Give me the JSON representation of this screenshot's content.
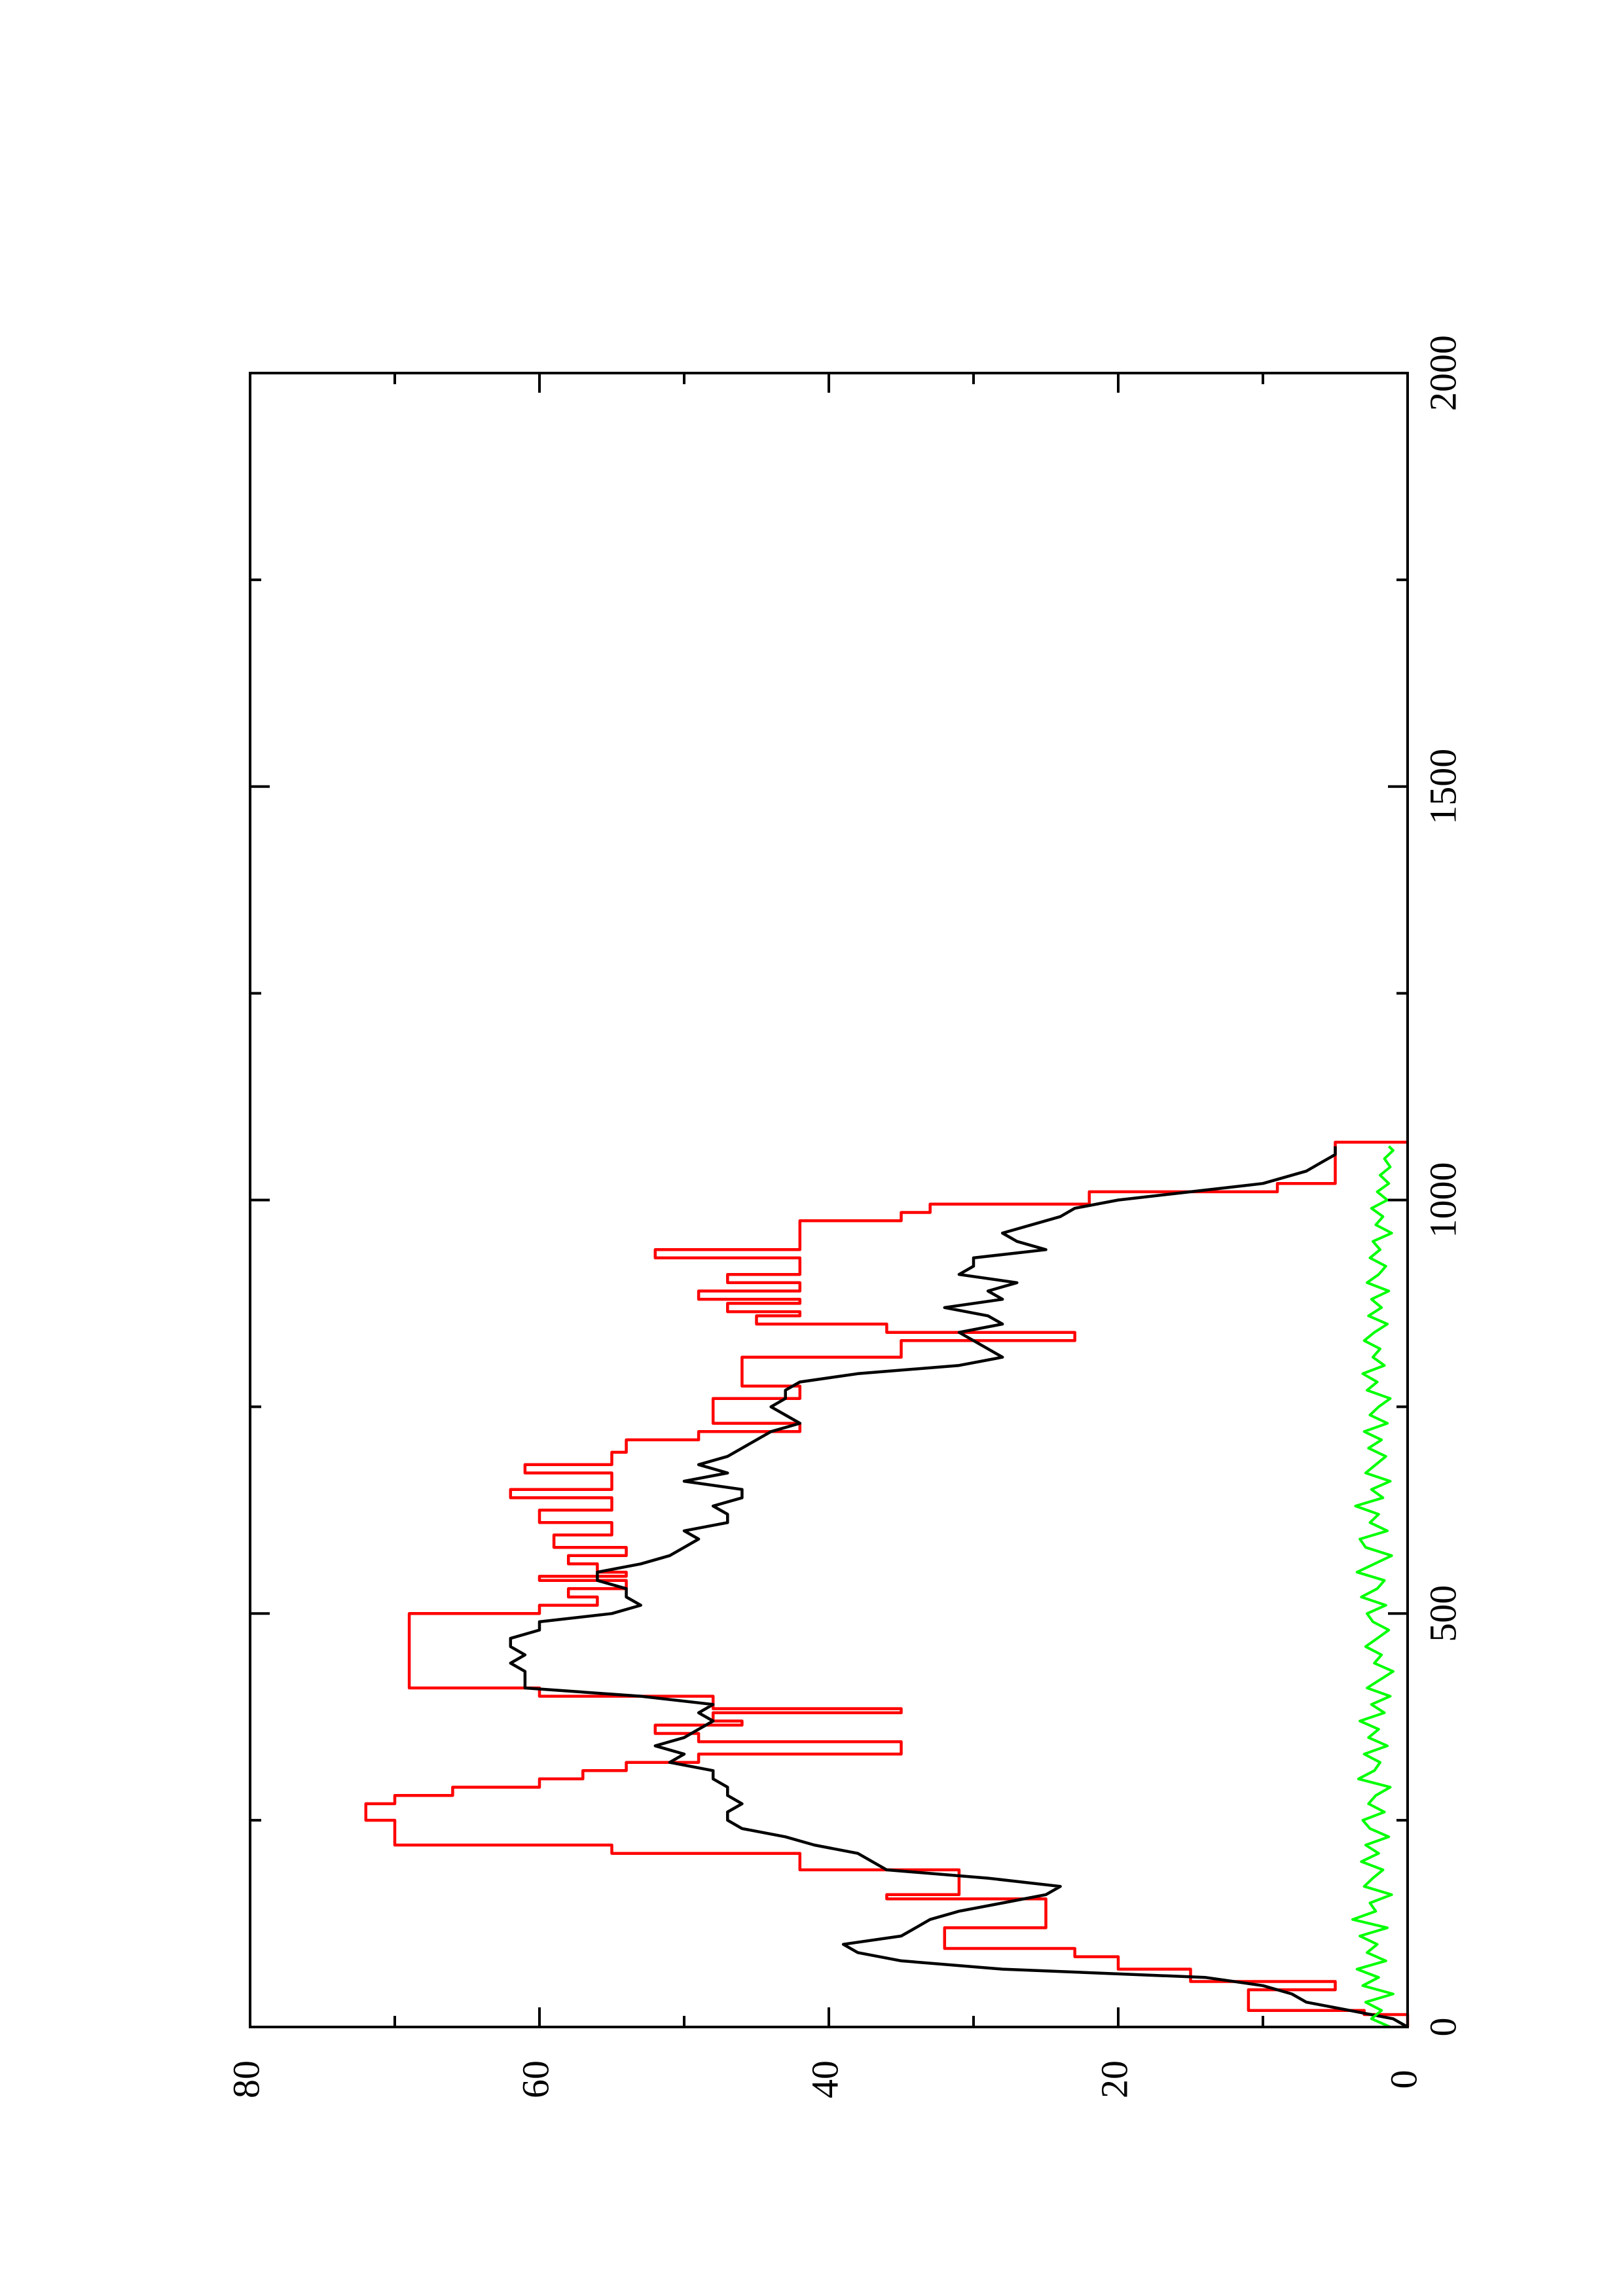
{
  "chart_data": {
    "type": "line",
    "title": "",
    "xlabel": "",
    "ylabel": "",
    "xlim": [
      0,
      2000
    ],
    "ylim": [
      0,
      80
    ],
    "orientation": "rotated-90-ccw",
    "grid": false,
    "legend": "none",
    "x_ticks": [
      {
        "value": 0,
        "label": "0"
      },
      {
        "value": 500,
        "label": "500"
      },
      {
        "value": 1000,
        "label": "1000"
      },
      {
        "value": 1500,
        "label": "1500"
      },
      {
        "value": 2000,
        "label": "2000"
      }
    ],
    "x_minor_ticks": [
      250,
      750,
      1250,
      1750
    ],
    "y_ticks": [
      {
        "value": 0,
        "label": "0"
      },
      {
        "value": 20,
        "label": "20"
      },
      {
        "value": 40,
        "label": "40"
      },
      {
        "value": 60,
        "label": "60"
      },
      {
        "value": 80,
        "label": "80"
      }
    ],
    "y_minor_ticks": [
      10,
      30,
      50,
      70
    ],
    "series": [
      {
        "color": "#ff0000",
        "style": "step",
        "points": [
          [
            0,
            0
          ],
          [
            15,
            3
          ],
          [
            20,
            11
          ],
          [
            35,
            11
          ],
          [
            45,
            5
          ],
          [
            55,
            15
          ],
          [
            70,
            20
          ],
          [
            85,
            23
          ],
          [
            95,
            32
          ],
          [
            110,
            32
          ],
          [
            120,
            25
          ],
          [
            140,
            25
          ],
          [
            155,
            36
          ],
          [
            160,
            31
          ],
          [
            180,
            31
          ],
          [
            190,
            42
          ],
          [
            200,
            42
          ],
          [
            210,
            55
          ],
          [
            220,
            70
          ],
          [
            240,
            70
          ],
          [
            250,
            72
          ],
          [
            265,
            72
          ],
          [
            270,
            70
          ],
          [
            280,
            66
          ],
          [
            290,
            60
          ],
          [
            300,
            57
          ],
          [
            310,
            54
          ],
          [
            320,
            49
          ],
          [
            330,
            35
          ],
          [
            345,
            49
          ],
          [
            355,
            52
          ],
          [
            365,
            46
          ],
          [
            370,
            48
          ],
          [
            380,
            35
          ],
          [
            385,
            48
          ],
          [
            395,
            48
          ],
          [
            400,
            60
          ],
          [
            410,
            69
          ],
          [
            490,
            69
          ],
          [
            500,
            60
          ],
          [
            510,
            56
          ],
          [
            520,
            58
          ],
          [
            530,
            54
          ],
          [
            540,
            60
          ],
          [
            545,
            54
          ],
          [
            550,
            56
          ],
          [
            560,
            58
          ],
          [
            570,
            54
          ],
          [
            580,
            59
          ],
          [
            595,
            55
          ],
          [
            610,
            60
          ],
          [
            625,
            55
          ],
          [
            640,
            62
          ],
          [
            650,
            55
          ],
          [
            665,
            55
          ],
          [
            670,
            61
          ],
          [
            680,
            55
          ],
          [
            695,
            54
          ],
          [
            710,
            49
          ],
          [
            720,
            42
          ],
          [
            730,
            48
          ],
          [
            750,
            48
          ],
          [
            760,
            42
          ],
          [
            775,
            46
          ],
          [
            790,
            46
          ],
          [
            810,
            35
          ],
          [
            830,
            23
          ],
          [
            840,
            36
          ],
          [
            850,
            45
          ],
          [
            860,
            42
          ],
          [
            865,
            47
          ],
          [
            875,
            42
          ],
          [
            880,
            49
          ],
          [
            890,
            42
          ],
          [
            900,
            47
          ],
          [
            910,
            42
          ],
          [
            920,
            42
          ],
          [
            930,
            52
          ],
          [
            940,
            42
          ],
          [
            960,
            42
          ],
          [
            975,
            35
          ],
          [
            985,
            33
          ],
          [
            995,
            22
          ],
          [
            1010,
            9
          ],
          [
            1020,
            5
          ],
          [
            1065,
            5
          ],
          [
            1070,
            0
          ]
        ]
      },
      {
        "color": "#000000",
        "style": "line",
        "points": [
          [
            0,
            0
          ],
          [
            10,
            1
          ],
          [
            20,
            4
          ],
          [
            30,
            7
          ],
          [
            40,
            8
          ],
          [
            50,
            10
          ],
          [
            60,
            14
          ],
          [
            70,
            28
          ],
          [
            80,
            35
          ],
          [
            90,
            38
          ],
          [
            100,
            39
          ],
          [
            110,
            35
          ],
          [
            120,
            34
          ],
          [
            130,
            33
          ],
          [
            140,
            31
          ],
          [
            150,
            28
          ],
          [
            160,
            25
          ],
          [
            170,
            24
          ],
          [
            180,
            29
          ],
          [
            190,
            36
          ],
          [
            200,
            37
          ],
          [
            210,
            38
          ],
          [
            220,
            41
          ],
          [
            230,
            43
          ],
          [
            240,
            46
          ],
          [
            250,
            47
          ],
          [
            260,
            47
          ],
          [
            270,
            46
          ],
          [
            280,
            47
          ],
          [
            290,
            47
          ],
          [
            300,
            48
          ],
          [
            310,
            48
          ],
          [
            320,
            51
          ],
          [
            330,
            50
          ],
          [
            340,
            52
          ],
          [
            350,
            50
          ],
          [
            360,
            49
          ],
          [
            370,
            48
          ],
          [
            380,
            49
          ],
          [
            390,
            48
          ],
          [
            400,
            53
          ],
          [
            410,
            61
          ],
          [
            420,
            61
          ],
          [
            430,
            61
          ],
          [
            440,
            62
          ],
          [
            450,
            61
          ],
          [
            460,
            62
          ],
          [
            470,
            62
          ],
          [
            480,
            60
          ],
          [
            490,
            60
          ],
          [
            500,
            55
          ],
          [
            510,
            53
          ],
          [
            520,
            54
          ],
          [
            530,
            54
          ],
          [
            540,
            56
          ],
          [
            550,
            56
          ],
          [
            560,
            53
          ],
          [
            570,
            51
          ],
          [
            580,
            50
          ],
          [
            590,
            49
          ],
          [
            600,
            50
          ],
          [
            610,
            47
          ],
          [
            620,
            47
          ],
          [
            630,
            48
          ],
          [
            640,
            46
          ],
          [
            650,
            46
          ],
          [
            660,
            50
          ],
          [
            670,
            47
          ],
          [
            680,
            49
          ],
          [
            690,
            47
          ],
          [
            700,
            46
          ],
          [
            710,
            45
          ],
          [
            720,
            44
          ],
          [
            730,
            42
          ],
          [
            740,
            43
          ],
          [
            750,
            44
          ],
          [
            760,
            43
          ],
          [
            770,
            43
          ],
          [
            780,
            42
          ],
          [
            790,
            38
          ],
          [
            800,
            31
          ],
          [
            810,
            28
          ],
          [
            820,
            29
          ],
          [
            830,
            30
          ],
          [
            840,
            31
          ],
          [
            850,
            28
          ],
          [
            860,
            29
          ],
          [
            870,
            32
          ],
          [
            880,
            28
          ],
          [
            890,
            29
          ],
          [
            900,
            27
          ],
          [
            910,
            31
          ],
          [
            920,
            30
          ],
          [
            930,
            30
          ],
          [
            940,
            25
          ],
          [
            950,
            27
          ],
          [
            960,
            28
          ],
          [
            970,
            26
          ],
          [
            980,
            24
          ],
          [
            990,
            23
          ],
          [
            1000,
            20
          ],
          [
            1010,
            15
          ],
          [
            1020,
            10
          ],
          [
            1035,
            7
          ],
          [
            1045,
            6
          ],
          [
            1055,
            5
          ],
          [
            1065,
            5
          ]
        ]
      },
      {
        "color": "#00ff00",
        "style": "noise",
        "points": [
          [
            0,
            1.2
          ],
          [
            10,
            2.5
          ],
          [
            20,
            1.8
          ],
          [
            30,
            2.9
          ],
          [
            40,
            1.0
          ],
          [
            50,
            3.1
          ],
          [
            60,
            2.0
          ],
          [
            70,
            3.5
          ],
          [
            80,
            1.5
          ],
          [
            90,
            2.8
          ],
          [
            100,
            2.1
          ],
          [
            110,
            3.3
          ],
          [
            120,
            1.4
          ],
          [
            130,
            3.8
          ],
          [
            140,
            2.2
          ],
          [
            150,
            2.6
          ],
          [
            160,
            1.1
          ],
          [
            170,
            3.0
          ],
          [
            180,
            2.4
          ],
          [
            190,
            1.7
          ],
          [
            200,
            3.2
          ],
          [
            210,
            2.0
          ],
          [
            220,
            2.9
          ],
          [
            230,
            1.3
          ],
          [
            240,
            2.6
          ],
          [
            250,
            3.1
          ],
          [
            260,
            1.6
          ],
          [
            270,
            2.7
          ],
          [
            280,
            2.2
          ],
          [
            290,
            1.2
          ],
          [
            300,
            3.4
          ],
          [
            310,
            2.3
          ],
          [
            320,
            1.9
          ],
          [
            330,
            3.0
          ],
          [
            340,
            1.4
          ],
          [
            350,
            2.7
          ],
          [
            360,
            2.0
          ],
          [
            370,
            3.3
          ],
          [
            380,
            1.6
          ],
          [
            390,
            2.5
          ],
          [
            400,
            1.2
          ],
          [
            410,
            2.8
          ],
          [
            420,
            1.9
          ],
          [
            430,
            1.0
          ],
          [
            440,
            2.3
          ],
          [
            450,
            1.8
          ],
          [
            460,
            2.9
          ],
          [
            470,
            2.1
          ],
          [
            480,
            1.3
          ],
          [
            490,
            2.4
          ],
          [
            500,
            2.8
          ],
          [
            510,
            1.5
          ],
          [
            520,
            3.2
          ],
          [
            530,
            2.1
          ],
          [
            540,
            1.6
          ],
          [
            550,
            3.5
          ],
          [
            560,
            2.3
          ],
          [
            570,
            1.1
          ],
          [
            580,
            2.9
          ],
          [
            590,
            3.3
          ],
          [
            600,
            1.4
          ],
          [
            610,
            2.6
          ],
          [
            620,
            2.0
          ],
          [
            630,
            3.6
          ],
          [
            640,
            1.7
          ],
          [
            650,
            2.5
          ],
          [
            660,
            1.2
          ],
          [
            670,
            2.9
          ],
          [
            680,
            2.2
          ],
          [
            690,
            1.5
          ],
          [
            700,
            2.7
          ],
          [
            710,
            1.8
          ],
          [
            720,
            3.0
          ],
          [
            730,
            1.4
          ],
          [
            740,
            2.6
          ],
          [
            750,
            2.0
          ],
          [
            760,
            1.2
          ],
          [
            770,
            2.8
          ],
          [
            780,
            2.1
          ],
          [
            790,
            3.1
          ],
          [
            800,
            1.6
          ],
          [
            810,
            2.4
          ],
          [
            820,
            1.9
          ],
          [
            830,
            3.0
          ],
          [
            840,
            2.3
          ],
          [
            850,
            1.4
          ],
          [
            860,
            2.7
          ],
          [
            870,
            1.8
          ],
          [
            880,
            2.5
          ],
          [
            890,
            1.3
          ],
          [
            900,
            2.8
          ],
          [
            910,
            2.0
          ],
          [
            920,
            1.5
          ],
          [
            930,
            2.6
          ],
          [
            940,
            1.9
          ],
          [
            950,
            2.4
          ],
          [
            960,
            1.1
          ],
          [
            970,
            2.2
          ],
          [
            980,
            1.7
          ],
          [
            990,
            2.5
          ],
          [
            1000,
            1.4
          ],
          [
            1010,
            2.1
          ],
          [
            1020,
            1.3
          ],
          [
            1030,
            1.9
          ],
          [
            1040,
            1.2
          ],
          [
            1050,
            1.6
          ],
          [
            1060,
            1.0
          ],
          [
            1065,
            1.3
          ]
        ]
      }
    ]
  }
}
